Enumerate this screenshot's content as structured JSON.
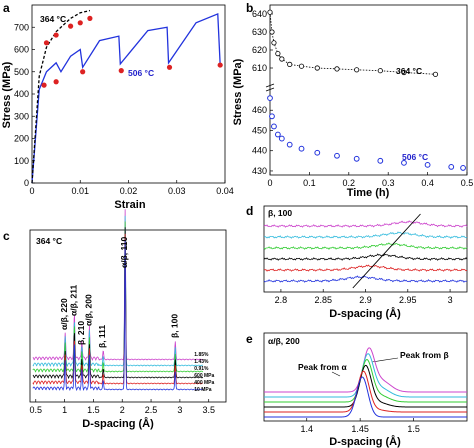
{
  "panels": {
    "a": {
      "label": "a",
      "xlabel": "Strain",
      "ylabel": "Stress (MPa)",
      "xticks": [
        "0",
        "0.01",
        "0.02",
        "0.03",
        "0.04"
      ],
      "yticks": [
        "0",
        "100",
        "200",
        "300",
        "400",
        "500",
        "600",
        "700"
      ],
      "ann_hot": "506 °C",
      "ann_cold": "364 °C"
    },
    "b": {
      "label": "b",
      "xlabel": "Time (h)",
      "ylabel": "Stress (MPa)",
      "xticks": [
        "0",
        "0.1",
        "0.2",
        "0.3",
        "0.4",
        "0.5"
      ],
      "yticks_top": [
        "610",
        "620",
        "630",
        "640"
      ],
      "yticks_bot": [
        "430",
        "440",
        "450",
        "460"
      ],
      "ann_cold": "364 °C",
      "ann_hot": "506 °C"
    },
    "c": {
      "label": "c",
      "xlabel": "D-spacing (Å)",
      "xticks": [
        "0.5",
        "1",
        "1.5",
        "2",
        "2.5",
        "3",
        "3.5"
      ],
      "temp": "364 °C",
      "peaks": [
        "α/β, 220",
        "α/β, 211",
        "β, 210",
        "α/β, 200",
        "β, 111",
        "α/β, 110",
        "β, 100"
      ],
      "legend": [
        "1.85%",
        "1.43%",
        "0.91%",
        "600 MPa",
        "400 MPa",
        "10 MPa"
      ]
    },
    "d": {
      "label": "d",
      "title": "β, 100",
      "xlabel": "D-spacing (Å)",
      "xticks": [
        "2.8",
        "2.85",
        "2.9",
        "2.95",
        "3"
      ]
    },
    "e": {
      "label": "e",
      "title": "α/β, 200",
      "xlabel": "D-spacing (Å)",
      "xticks": [
        "1.4",
        "1.45",
        "1.5"
      ],
      "ann_alpha": "Peak from α",
      "ann_beta": "Peak from β"
    }
  },
  "colors": {
    "curve_hot": "#2233dd",
    "curve_cold": "#000000",
    "markers": "#dd2222",
    "series": [
      "#cc44cc",
      "#33bbdd",
      "#33cc33",
      "#000000",
      "#dd2222",
      "#2233dd"
    ]
  },
  "chart_data": [
    {
      "id": "a",
      "type": "line",
      "xlabel": "Strain",
      "ylabel": "Stress (MPa)",
      "xlim": [
        0,
        0.04
      ],
      "ylim": [
        0,
        800
      ],
      "series": [
        {
          "name": "506 °C",
          "x": [
            0,
            0.0015,
            0.003,
            0.005,
            0.006,
            0.008,
            0.01,
            0.0105,
            0.014,
            0.018,
            0.0183,
            0.024,
            0.028,
            0.0283,
            0.034,
            0.0385,
            0.039
          ],
          "y": [
            0,
            420,
            500,
            540,
            500,
            570,
            600,
            520,
            640,
            660,
            535,
            685,
            700,
            540,
            720,
            760,
            530
          ]
        },
        {
          "name": "364 °C",
          "x": [
            0,
            0.0015,
            0.003,
            0.005,
            0.008,
            0.01,
            0.012
          ],
          "y": [
            0,
            480,
            610,
            680,
            740,
            765,
            775
          ]
        }
      ],
      "relaxation_points": [
        [
          0.0025,
          440
        ],
        [
          0.005,
          455
        ],
        [
          0.0105,
          500
        ],
        [
          0.0185,
          505
        ],
        [
          0.0285,
          520
        ],
        [
          0.039,
          530
        ],
        [
          0.003,
          630
        ],
        [
          0.005,
          665
        ],
        [
          0.008,
          705
        ],
        [
          0.01,
          720
        ],
        [
          0.012,
          740
        ]
      ]
    },
    {
      "id": "b",
      "type": "scatter",
      "xlabel": "Time (h)",
      "ylabel": "Stress (MPa)",
      "xlim": [
        0,
        0.5
      ],
      "series": [
        {
          "name": "364 °C",
          "x": [
            0,
            0.005,
            0.01,
            0.02,
            0.03,
            0.05,
            0.08,
            0.12,
            0.17,
            0.22,
            0.28,
            0.34,
            0.42
          ],
          "y": [
            641,
            630,
            624,
            618,
            615,
            612,
            611,
            610,
            609.5,
            609,
            608.5,
            607.5,
            606.5
          ]
        },
        {
          "name": "506 °C",
          "x": [
            0,
            0.005,
            0.01,
            0.02,
            0.03,
            0.05,
            0.08,
            0.12,
            0.17,
            0.22,
            0.28,
            0.34,
            0.4,
            0.46,
            0.49
          ],
          "y": [
            466,
            457,
            452,
            448,
            446,
            443,
            441,
            439,
            437.5,
            436,
            435,
            434,
            433,
            432,
            431.5
          ]
        }
      ]
    },
    {
      "id": "c",
      "type": "line",
      "xlabel": "D-spacing (Å)",
      "xlim": [
        0.4,
        3.8
      ],
      "peak_positions": [
        1.01,
        1.17,
        1.3,
        1.43,
        1.67,
        2.05,
        2.92
      ],
      "series_names": [
        "1.85%",
        "1.43%",
        "0.91%",
        "600 MPa",
        "400 MPa",
        "10 MPa"
      ]
    },
    {
      "id": "d",
      "type": "line",
      "xlabel": "D-spacing (Å)",
      "xlim": [
        2.78,
        3.02
      ],
      "peak_centers": [
        2.95,
        2.94,
        2.93,
        2.92,
        2.905,
        2.895
      ]
    },
    {
      "id": "e",
      "type": "line",
      "xlabel": "D-spacing (Å)",
      "xlim": [
        1.36,
        1.55
      ],
      "peak_centers": [
        1.458,
        1.457,
        1.456,
        1.455,
        1.453,
        1.452
      ]
    }
  ]
}
